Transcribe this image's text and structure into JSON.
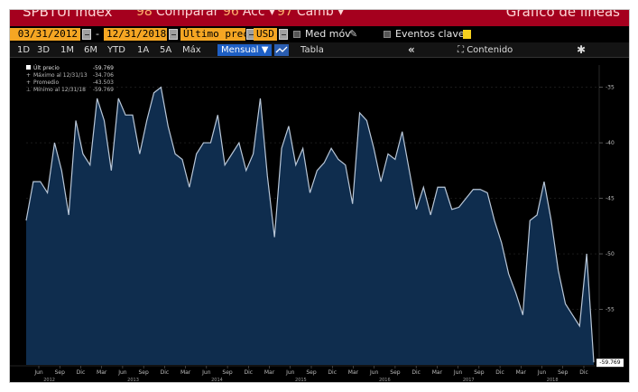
{
  "header": {
    "ticker": "SPBTUI Index",
    "compare_num": "98",
    "compare_label": "Comparar",
    "actions_num": "96",
    "actions_label": "Acc",
    "edit_num": "97",
    "edit_label": "Camb",
    "title_right": "Gráfico de líneas"
  },
  "toolbar": {
    "start_date": "03/31/2012",
    "date_separator": "-",
    "end_date": "12/31/2018",
    "price_field": "Último prec",
    "currency": "USD",
    "moving_avg_label": "Med móv",
    "key_events_label": "Eventos clave"
  },
  "range_bar": {
    "ranges": [
      "1D",
      "3D",
      "1M",
      "6M",
      "YTD",
      "1A",
      "5A",
      "Máx"
    ],
    "frequency": "Mensual",
    "table_label": "Tabla",
    "collapse_label": "«",
    "content_label": "Contenido"
  },
  "legend": {
    "last_price_label": "Últ precio",
    "last_price_value": "-59.769",
    "max_label": "Máximo al 12/31/13",
    "max_value": "-34.706",
    "mean_label": "Promedio",
    "mean_value": "-43.503",
    "min_label": "Mínimo al 12/31/18",
    "min_value": "-59.769"
  },
  "last_value_tag": "-59.769",
  "colors": {
    "header_red": "#a5001e",
    "field_orange": "#f5a623",
    "mode_blue": "#1e5fc4",
    "area_fill": "#0f2d4e",
    "line": "#b9c7d8",
    "background": "#000000"
  },
  "chart_data": {
    "type": "area",
    "ylim": [
      -60,
      -33
    ],
    "yticks": [
      -35,
      -40,
      -45,
      -50,
      -55
    ],
    "x_tick_labels": [
      "Jun",
      "Sep",
      "Dic",
      "Mar",
      "Jun",
      "Sep",
      "Dic",
      "Mar",
      "Jun",
      "Sep",
      "Dic",
      "Mar",
      "Jun",
      "Sep",
      "Dic",
      "Mar",
      "Jun",
      "Sep",
      "Dic",
      "Mar",
      "Jun",
      "Sep",
      "Dic",
      "Mar",
      "Jun",
      "Sep",
      "Dic"
    ],
    "year_labels": [
      "2012",
      "2013",
      "2014",
      "2015",
      "2016",
      "2017",
      "2018"
    ],
    "series": [
      {
        "values": [
          -47,
          -43.5,
          -43.5,
          -44.5,
          -40,
          -42.5,
          -46.5,
          -38,
          -41,
          -42,
          -36,
          -38,
          -42.5,
          -36,
          -37.5,
          -37.5,
          -41,
          -38,
          -35.5,
          -35,
          -38.5,
          -41,
          -41.5,
          -44,
          -41,
          -40,
          -40,
          -37.5,
          -42,
          -41,
          -40,
          -42.5,
          -41,
          -36,
          -43,
          -48.5,
          -40.5,
          -38.5,
          -42,
          -40.5,
          -44.5,
          -42.5,
          -41.8,
          -40.5,
          -41.5,
          -42,
          -45.5,
          -37.3,
          -38,
          -40.5,
          -43.5,
          -41,
          -41.5,
          -39,
          -42.5,
          -46,
          -44,
          -46.5,
          -44,
          -44,
          -46,
          -45.8,
          -45,
          -44.2,
          -44.2,
          -44.5,
          -47,
          -49,
          -51.8,
          -53.5,
          -55.5,
          -47,
          -46.5,
          -43.5,
          -47,
          -51.5,
          -54.5,
          -55.5,
          -56.5,
          -50,
          -59.769
        ]
      }
    ]
  }
}
